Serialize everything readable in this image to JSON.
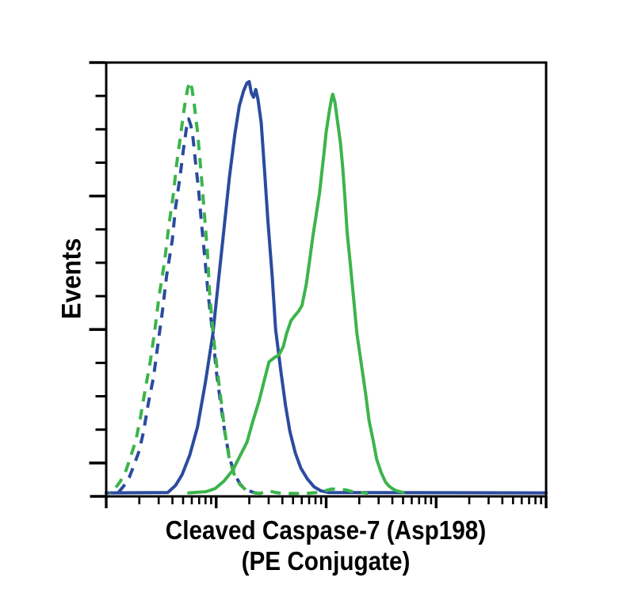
{
  "figure": {
    "background": "#FFFFFF",
    "ylabel": "Events",
    "xlabel_line1": "Cleaved Caspase-7 (Asp198)",
    "xlabel_line2": "(PE Conjugate)"
  },
  "chart_data": {
    "type": "line",
    "subtype": "flow-cytometry-histogram-overlay",
    "title": "",
    "xlabel": "Cleaved Caspase-7 (Asp198) (PE Conjugate)",
    "ylabel": "Events",
    "axis_color": "#000000",
    "x_axis": {
      "scale": "log",
      "decades": 4,
      "minor_ticks_per_decade": [
        2,
        3,
        4,
        5,
        6,
        7,
        8,
        9
      ],
      "tick_labels_shown": false
    },
    "y_axis": {
      "scale": "linear",
      "range_pct_of_max": [
        0,
        100
      ],
      "tick_intervals": 13,
      "major_every": 4,
      "tick_labels_shown": false
    },
    "legend_shown": false,
    "series": [
      {
        "name": "solid-blue-histogram",
        "color": "#2B4B9E",
        "style": "solid",
        "points": [
          [
            0,
            0.8
          ],
          [
            0.56,
            0.9
          ],
          [
            0.63,
            2.5
          ],
          [
            0.69,
            5
          ],
          [
            0.76,
            9.5
          ],
          [
            0.83,
            16
          ],
          [
            0.9,
            26
          ],
          [
            0.97,
            37.5
          ],
          [
            1.02,
            49.5
          ],
          [
            1.07,
            61.5
          ],
          [
            1.12,
            73.5
          ],
          [
            1.17,
            83.5
          ],
          [
            1.21,
            90
          ],
          [
            1.25,
            93.5
          ],
          [
            1.28,
            95.3
          ],
          [
            1.3,
            95.6
          ],
          [
            1.32,
            93.0
          ],
          [
            1.34,
            92.0
          ],
          [
            1.36,
            93.8
          ],
          [
            1.38,
            91.5
          ],
          [
            1.41,
            86
          ],
          [
            1.44,
            75
          ],
          [
            1.47,
            63.5
          ],
          [
            1.51,
            50.5
          ],
          [
            1.54,
            38.5
          ],
          [
            1.59,
            28.5
          ],
          [
            1.63,
            21
          ],
          [
            1.67,
            15
          ],
          [
            1.72,
            10
          ],
          [
            1.77,
            6.5
          ],
          [
            1.83,
            4
          ],
          [
            1.89,
            2.2
          ],
          [
            1.95,
            1.3
          ],
          [
            2.02,
            0.9
          ],
          [
            4.0,
            0.8
          ]
        ]
      },
      {
        "name": "dashed-blue-histogram",
        "color": "#2B4B9E",
        "style": "dashed",
        "points": [
          [
            0.11,
            0.9
          ],
          [
            0.16,
            2.4
          ],
          [
            0.21,
            4.4
          ],
          [
            0.25,
            7
          ],
          [
            0.3,
            10.5
          ],
          [
            0.34,
            15
          ],
          [
            0.38,
            21
          ],
          [
            0.43,
            27.5
          ],
          [
            0.47,
            35
          ],
          [
            0.51,
            42.5
          ],
          [
            0.55,
            51
          ],
          [
            0.6,
            59
          ],
          [
            0.63,
            66.5
          ],
          [
            0.67,
            73.5
          ],
          [
            0.7,
            79.5
          ],
          [
            0.73,
            85
          ],
          [
            0.75,
            87
          ],
          [
            0.77,
            85.5
          ],
          [
            0.79,
            82.5
          ],
          [
            0.81,
            77.5
          ],
          [
            0.84,
            70.5
          ],
          [
            0.87,
            62
          ],
          [
            0.9,
            54
          ],
          [
            0.93,
            46
          ],
          [
            0.97,
            37
          ],
          [
            1.0,
            29
          ],
          [
            1.04,
            21.5
          ],
          [
            1.08,
            14.5
          ],
          [
            1.12,
            9
          ],
          [
            1.17,
            5
          ],
          [
            1.22,
            2.7
          ],
          [
            1.27,
            1.6
          ],
          [
            1.32,
            1.1
          ],
          [
            1.37,
            0.7
          ]
        ]
      },
      {
        "name": "dashed-green-histogram",
        "color": "#3CB44B",
        "style": "dashed",
        "points": [
          [
            0.03,
            0.7
          ],
          [
            0.08,
            1.8
          ],
          [
            0.13,
            3.5
          ],
          [
            0.18,
            6
          ],
          [
            0.22,
            9
          ],
          [
            0.27,
            13
          ],
          [
            0.31,
            18
          ],
          [
            0.35,
            24
          ],
          [
            0.4,
            31
          ],
          [
            0.44,
            38
          ],
          [
            0.48,
            46
          ],
          [
            0.53,
            54
          ],
          [
            0.57,
            62.5
          ],
          [
            0.61,
            69.5
          ],
          [
            0.64,
            76.5
          ],
          [
            0.68,
            84
          ],
          [
            0.71,
            89.5
          ],
          [
            0.74,
            94
          ],
          [
            0.76,
            95.6
          ],
          [
            0.78,
            94
          ],
          [
            0.8,
            90.5
          ],
          [
            0.83,
            84
          ],
          [
            0.86,
            75.5
          ],
          [
            0.89,
            66
          ],
          [
            0.92,
            56.5
          ],
          [
            0.94,
            47
          ],
          [
            0.97,
            38
          ],
          [
            1.01,
            29
          ],
          [
            1.05,
            21
          ],
          [
            1.08,
            14.5
          ],
          [
            1.12,
            8.5
          ],
          [
            1.17,
            4.6
          ],
          [
            1.22,
            2.6
          ],
          [
            1.27,
            1.5
          ],
          [
            1.33,
            0.9
          ],
          [
            1.4,
            0.7
          ],
          [
            1.47,
            1.3
          ],
          [
            1.54,
            0.9
          ],
          [
            1.61,
            0.7
          ],
          [
            1.72,
            0.7
          ],
          [
            1.82,
            0.7
          ],
          [
            1.92,
            0.9
          ],
          [
            1.99,
            1.3
          ],
          [
            2.05,
            1.7
          ],
          [
            2.11,
            1.7
          ],
          [
            2.18,
            1.5
          ],
          [
            2.24,
            1.1
          ],
          [
            2.31,
            0.9
          ],
          [
            2.38,
            0.7
          ]
        ]
      },
      {
        "name": "solid-green-histogram",
        "color": "#3CB44B",
        "style": "solid",
        "points": [
          [
            0.75,
            0.8
          ],
          [
            0.91,
            1.1
          ],
          [
            0.99,
            1.8
          ],
          [
            1.07,
            3.5
          ],
          [
            1.15,
            6
          ],
          [
            1.21,
            9
          ],
          [
            1.28,
            12.5
          ],
          [
            1.33,
            17
          ],
          [
            1.39,
            22
          ],
          [
            1.44,
            27
          ],
          [
            1.48,
            31
          ],
          [
            1.53,
            32
          ],
          [
            1.57,
            32.6
          ],
          [
            1.61,
            34.5
          ],
          [
            1.64,
            37.5
          ],
          [
            1.68,
            40.5
          ],
          [
            1.72,
            41.8
          ],
          [
            1.75,
            42.7
          ],
          [
            1.78,
            44
          ],
          [
            1.82,
            49
          ],
          [
            1.85,
            54.5
          ],
          [
            1.88,
            60
          ],
          [
            1.91,
            65
          ],
          [
            1.94,
            70
          ],
          [
            1.96,
            74.5
          ],
          [
            1.98,
            79
          ],
          [
            2.0,
            84
          ],
          [
            2.03,
            89
          ],
          [
            2.05,
            91.8
          ],
          [
            2.06,
            92.7
          ],
          [
            2.08,
            90.8
          ],
          [
            2.1,
            87
          ],
          [
            2.13,
            81.5
          ],
          [
            2.15,
            76
          ],
          [
            2.17,
            69
          ],
          [
            2.19,
            61
          ],
          [
            2.22,
            53.5
          ],
          [
            2.25,
            45.5
          ],
          [
            2.28,
            37.5
          ],
          [
            2.32,
            30.5
          ],
          [
            2.36,
            23.5
          ],
          [
            2.39,
            17.5
          ],
          [
            2.43,
            12.5
          ],
          [
            2.46,
            8.5
          ],
          [
            2.5,
            5.5
          ],
          [
            2.54,
            3.3
          ],
          [
            2.57,
            2.4
          ],
          [
            2.6,
            1.8
          ],
          [
            2.64,
            1.3
          ],
          [
            2.7,
            0.9
          ]
        ]
      }
    ]
  }
}
